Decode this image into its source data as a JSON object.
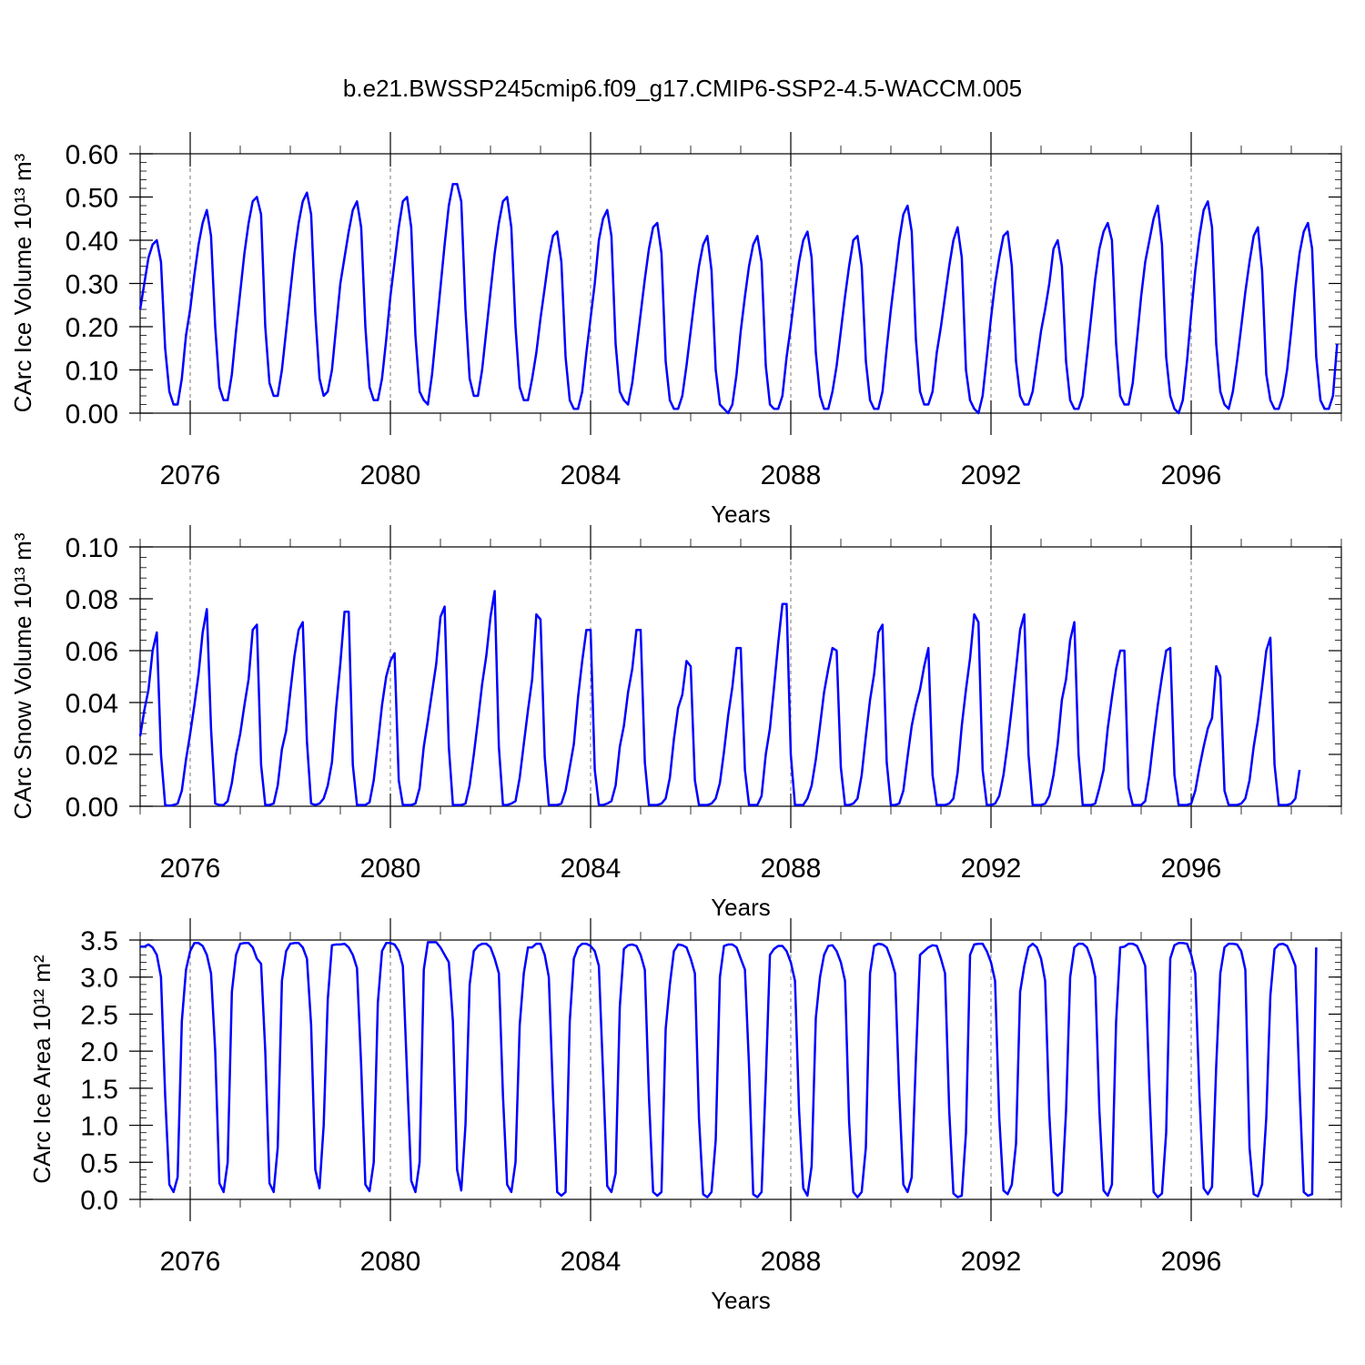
{
  "figure": {
    "title": "b.e21.BWSSP245cmip6.f09_g17.CMIP6-SSP2-4.5-WACCM.005"
  },
  "chart_data": [
    {
      "type": "line",
      "panel": "ice-volume",
      "ylabel": "CArc Ice Volume",
      "ylabel_unit": "10¹³ m³",
      "xlabel": "Years",
      "xlim": [
        2075,
        2099
      ],
      "ylim": [
        0,
        0.6
      ],
      "yticks": [
        0.0,
        0.1,
        0.2,
        0.3,
        0.4,
        0.5,
        0.6
      ],
      "ytick_labels": [
        "0.00",
        "0.10",
        "0.20",
        "0.30",
        "0.40",
        "0.50",
        "0.60"
      ],
      "yminor_step": 0.02,
      "xticks": [
        2076,
        2080,
        2084,
        2088,
        2092,
        2096
      ],
      "xtick_labels": [
        "2076",
        "2080",
        "2084",
        "2088",
        "2092",
        "2096"
      ],
      "grid": "vertical-dashed",
      "series": [
        {
          "color": "#0000ff",
          "x_start": 2075.0,
          "x_step": 0.08333,
          "values": [
            0.24,
            0.3,
            0.36,
            0.39,
            0.4,
            0.35,
            0.15,
            0.05,
            0.02,
            0.02,
            0.08,
            0.18,
            0.24,
            0.32,
            0.39,
            0.44,
            0.47,
            0.41,
            0.2,
            0.06,
            0.03,
            0.03,
            0.09,
            0.19,
            0.28,
            0.37,
            0.44,
            0.49,
            0.5,
            0.46,
            0.2,
            0.07,
            0.04,
            0.04,
            0.1,
            0.19,
            0.28,
            0.37,
            0.44,
            0.49,
            0.51,
            0.46,
            0.23,
            0.08,
            0.04,
            0.05,
            0.1,
            0.2,
            0.3,
            0.36,
            0.42,
            0.47,
            0.49,
            0.43,
            0.2,
            0.06,
            0.03,
            0.03,
            0.08,
            0.17,
            0.27,
            0.35,
            0.43,
            0.49,
            0.5,
            0.43,
            0.18,
            0.05,
            0.03,
            0.02,
            0.09,
            0.19,
            0.29,
            0.39,
            0.48,
            0.53,
            0.53,
            0.49,
            0.24,
            0.08,
            0.04,
            0.04,
            0.1,
            0.19,
            0.28,
            0.37,
            0.44,
            0.49,
            0.5,
            0.43,
            0.2,
            0.06,
            0.03,
            0.03,
            0.08,
            0.14,
            0.22,
            0.29,
            0.36,
            0.41,
            0.42,
            0.35,
            0.13,
            0.03,
            0.01,
            0.01,
            0.05,
            0.14,
            0.22,
            0.3,
            0.4,
            0.45,
            0.47,
            0.41,
            0.16,
            0.05,
            0.03,
            0.02,
            0.07,
            0.15,
            0.23,
            0.31,
            0.38,
            0.43,
            0.44,
            0.37,
            0.12,
            0.03,
            0.01,
            0.01,
            0.04,
            0.11,
            0.19,
            0.27,
            0.34,
            0.39,
            0.41,
            0.33,
            0.1,
            0.02,
            0.01,
            0.0,
            0.02,
            0.09,
            0.19,
            0.27,
            0.34,
            0.39,
            0.41,
            0.35,
            0.11,
            0.02,
            0.01,
            0.01,
            0.04,
            0.13,
            0.2,
            0.28,
            0.35,
            0.4,
            0.42,
            0.36,
            0.14,
            0.04,
            0.01,
            0.01,
            0.05,
            0.11,
            0.19,
            0.27,
            0.34,
            0.4,
            0.41,
            0.34,
            0.12,
            0.03,
            0.01,
            0.01,
            0.05,
            0.15,
            0.24,
            0.32,
            0.4,
            0.46,
            0.48,
            0.42,
            0.17,
            0.05,
            0.02,
            0.02,
            0.05,
            0.14,
            0.2,
            0.27,
            0.34,
            0.4,
            0.43,
            0.36,
            0.1,
            0.03,
            0.01,
            0.0,
            0.04,
            0.13,
            0.22,
            0.3,
            0.36,
            0.41,
            0.42,
            0.34,
            0.12,
            0.04,
            0.02,
            0.02,
            0.05,
            0.12,
            0.19,
            0.24,
            0.3,
            0.38,
            0.4,
            0.34,
            0.12,
            0.03,
            0.01,
            0.01,
            0.04,
            0.13,
            0.22,
            0.31,
            0.38,
            0.42,
            0.44,
            0.4,
            0.16,
            0.04,
            0.02,
            0.02,
            0.07,
            0.17,
            0.27,
            0.35,
            0.4,
            0.45,
            0.48,
            0.39,
            0.13,
            0.04,
            0.01,
            0.0,
            0.03,
            0.12,
            0.23,
            0.33,
            0.41,
            0.47,
            0.49,
            0.43,
            0.16,
            0.05,
            0.02,
            0.01,
            0.05,
            0.12,
            0.2,
            0.28,
            0.35,
            0.41,
            0.43,
            0.33,
            0.09,
            0.03,
            0.01,
            0.01,
            0.04,
            0.1,
            0.19,
            0.29,
            0.37,
            0.42,
            0.44,
            0.38,
            0.13,
            0.03,
            0.01,
            0.01,
            0.04,
            0.16
          ]
        }
      ]
    },
    {
      "type": "line",
      "panel": "snow-volume",
      "ylabel": "CArc Snow Volume",
      "ylabel_unit": "10¹³ m³",
      "xlabel": "Years",
      "xlim": [
        2075,
        2099
      ],
      "ylim": [
        0,
        0.1
      ],
      "yticks": [
        0.0,
        0.02,
        0.04,
        0.06,
        0.08,
        0.1
      ],
      "ytick_labels": [
        "0.00",
        "0.02",
        "0.04",
        "0.06",
        "0.08",
        "0.10"
      ],
      "yminor_step": 0.004,
      "xticks": [
        2076,
        2080,
        2084,
        2088,
        2092,
        2096
      ],
      "xtick_labels": [
        "2076",
        "2080",
        "2084",
        "2088",
        "2092",
        "2096"
      ],
      "grid": "vertical-dashed",
      "series": [
        {
          "color": "#0000ff",
          "x_start": 2075.0,
          "x_step": 0.08333,
          "values": [
            0.027,
            0.037,
            0.045,
            0.06,
            0.067,
            0.02,
            0.0005,
            0.0002,
            0.0005,
            0.001,
            0.006,
            0.018,
            0.028,
            0.039,
            0.051,
            0.067,
            0.076,
            0.03,
            0.001,
            0.0005,
            0.0005,
            0.002,
            0.009,
            0.02,
            0.028,
            0.039,
            0.049,
            0.068,
            0.07,
            0.016,
            0.0005,
            0.0005,
            0.001,
            0.008,
            0.022,
            0.029,
            0.044,
            0.058,
            0.068,
            0.071,
            0.025,
            0.001,
            0.0005,
            0.001,
            0.003,
            0.008,
            0.017,
            0.038,
            0.055,
            0.075,
            0.075,
            0.016,
            0.0005,
            0.0005,
            0.0005,
            0.0015,
            0.01,
            0.024,
            0.039,
            0.05,
            0.056,
            0.059,
            0.01,
            0.0005,
            0.0005,
            0.0005,
            0.001,
            0.007,
            0.023,
            0.033,
            0.044,
            0.055,
            0.073,
            0.077,
            0.023,
            0.0005,
            0.0005,
            0.0005,
            0.001,
            0.008,
            0.02,
            0.033,
            0.047,
            0.058,
            0.073,
            0.083,
            0.023,
            0.0005,
            0.0005,
            0.001,
            0.002,
            0.011,
            0.024,
            0.037,
            0.049,
            0.074,
            0.072,
            0.019,
            0.0005,
            0.0005,
            0.0005,
            0.001,
            0.006,
            0.015,
            0.024,
            0.042,
            0.056,
            0.068,
            0.068,
            0.014,
            0.0005,
            0.0005,
            0.001,
            0.002,
            0.008,
            0.023,
            0.031,
            0.044,
            0.053,
            0.068,
            0.068,
            0.017,
            0.0005,
            0.0005,
            0.0005,
            0.001,
            0.003,
            0.011,
            0.026,
            0.038,
            0.043,
            0.056,
            0.054,
            0.01,
            0.0005,
            0.0005,
            0.0005,
            0.001,
            0.003,
            0.009,
            0.021,
            0.035,
            0.046,
            0.061,
            0.061,
            0.014,
            0.0005,
            0.0005,
            0.0005,
            0.004,
            0.02,
            0.03,
            0.046,
            0.063,
            0.078,
            0.078,
            0.02,
            0.0005,
            0.0005,
            0.0005,
            0.003,
            0.008,
            0.018,
            0.031,
            0.044,
            0.053,
            0.061,
            0.06,
            0.015,
            0.0005,
            0.0005,
            0.001,
            0.003,
            0.012,
            0.027,
            0.041,
            0.051,
            0.067,
            0.07,
            0.017,
            0.0005,
            0.0005,
            0.001,
            0.006,
            0.019,
            0.031,
            0.039,
            0.045,
            0.054,
            0.061,
            0.012,
            0.0005,
            0.0005,
            0.0005,
            0.001,
            0.003,
            0.013,
            0.031,
            0.045,
            0.057,
            0.074,
            0.071,
            0.014,
            0.0005,
            0.0005,
            0.001,
            0.004,
            0.012,
            0.024,
            0.038,
            0.053,
            0.068,
            0.074,
            0.02,
            0.0005,
            0.0005,
            0.0005,
            0.001,
            0.004,
            0.012,
            0.024,
            0.041,
            0.049,
            0.064,
            0.071,
            0.02,
            0.0005,
            0.0005,
            0.0005,
            0.001,
            0.007,
            0.014,
            0.03,
            0.042,
            0.053,
            0.06,
            0.06,
            0.007,
            0.0005,
            0.0005,
            0.0005,
            0.002,
            0.012,
            0.026,
            0.039,
            0.05,
            0.06,
            0.061,
            0.012,
            0.0005,
            0.0005,
            0.0005,
            0.001,
            0.006,
            0.015,
            0.023,
            0.03,
            0.034,
            0.054,
            0.05,
            0.006,
            0.0005,
            0.0005,
            0.0005,
            0.001,
            0.003,
            0.01,
            0.023,
            0.033,
            0.046,
            0.06,
            0.065,
            0.016,
            0.0005,
            0.0005,
            0.0005,
            0.001,
            0.003,
            0.014
          ]
        }
      ]
    },
    {
      "type": "line",
      "panel": "ice-area",
      "ylabel": "CArc Ice Area",
      "ylabel_unit": "10¹² m²",
      "xlabel": "Years",
      "xlim": [
        2075,
        2099
      ],
      "ylim": [
        0,
        3.5
      ],
      "yticks": [
        0.0,
        0.5,
        1.0,
        1.5,
        2.0,
        2.5,
        3.0,
        3.5
      ],
      "ytick_labels": [
        "0.0",
        "0.5",
        "1.0",
        "1.5",
        "2.0",
        "2.5",
        "3.0",
        "3.5"
      ],
      "yminor_step": 0.1,
      "xticks": [
        2076,
        2080,
        2084,
        2088,
        2092,
        2096
      ],
      "xtick_labels": [
        "2076",
        "2080",
        "2084",
        "2088",
        "2092",
        "2096"
      ],
      "grid": "vertical-dashed",
      "series": [
        {
          "color": "#0000ff",
          "x_start": 2075.0,
          "x_step": 0.08333,
          "values": [
            3.41,
            3.41,
            3.44,
            3.4,
            3.3,
            3.0,
            1.4,
            0.2,
            0.1,
            0.3,
            2.4,
            3.1,
            3.35,
            3.46,
            3.46,
            3.42,
            3.3,
            3.05,
            2.0,
            0.22,
            0.1,
            0.5,
            2.8,
            3.3,
            3.45,
            3.46,
            3.46,
            3.4,
            3.25,
            3.18,
            2.0,
            0.22,
            0.1,
            0.7,
            2.95,
            3.35,
            3.45,
            3.46,
            3.46,
            3.4,
            3.25,
            2.35,
            0.4,
            0.15,
            1.0,
            2.7,
            3.43,
            3.44,
            3.44,
            3.45,
            3.4,
            3.3,
            3.12,
            1.8,
            0.2,
            0.11,
            0.5,
            2.65,
            3.35,
            3.46,
            3.46,
            3.44,
            3.35,
            3.15,
            1.7,
            0.25,
            0.1,
            0.5,
            3.1,
            3.47,
            3.47,
            3.47,
            3.4,
            3.3,
            3.2,
            2.4,
            0.4,
            0.12,
            1.0,
            2.9,
            3.35,
            3.42,
            3.45,
            3.45,
            3.4,
            3.25,
            3.05,
            1.4,
            0.2,
            0.1,
            0.5,
            2.35,
            3.05,
            3.4,
            3.4,
            3.45,
            3.45,
            3.3,
            3.0,
            1.4,
            0.1,
            0.05,
            0.1,
            2.4,
            3.25,
            3.4,
            3.45,
            3.45,
            3.42,
            3.35,
            3.15,
            1.7,
            0.18,
            0.1,
            0.35,
            2.6,
            3.38,
            3.43,
            3.44,
            3.42,
            3.3,
            3.1,
            1.4,
            0.1,
            0.05,
            0.1,
            2.3,
            2.9,
            3.35,
            3.44,
            3.43,
            3.4,
            3.25,
            3.05,
            1.1,
            0.07,
            0.03,
            0.1,
            0.8,
            3.0,
            3.42,
            3.44,
            3.44,
            3.4,
            3.25,
            3.1,
            1.8,
            0.07,
            0.03,
            0.1,
            1.6,
            3.3,
            3.38,
            3.42,
            3.42,
            3.35,
            3.2,
            2.95,
            1.2,
            0.15,
            0.05,
            0.45,
            2.45,
            3.0,
            3.3,
            3.42,
            3.43,
            3.35,
            3.2,
            2.95,
            1.05,
            0.1,
            0.03,
            0.1,
            0.7,
            3.05,
            3.42,
            3.45,
            3.44,
            3.4,
            3.25,
            3.05,
            1.45,
            0.2,
            0.1,
            0.3,
            1.9,
            3.3,
            3.35,
            3.4,
            3.43,
            3.42,
            3.25,
            3.05,
            1.2,
            0.08,
            0.03,
            0.05,
            0.9,
            3.3,
            3.44,
            3.45,
            3.45,
            3.35,
            3.2,
            2.95,
            1.1,
            0.12,
            0.07,
            0.2,
            0.75,
            2.8,
            3.15,
            3.4,
            3.45,
            3.4,
            3.25,
            2.95,
            1.15,
            0.1,
            0.05,
            0.1,
            1.2,
            3.0,
            3.4,
            3.45,
            3.45,
            3.4,
            3.25,
            3.0,
            1.2,
            0.12,
            0.05,
            0.2,
            2.4,
            3.4,
            3.41,
            3.45,
            3.45,
            3.42,
            3.3,
            3.15,
            1.5,
            0.1,
            0.03,
            0.08,
            0.9,
            3.25,
            3.43,
            3.46,
            3.46,
            3.45,
            3.3,
            3.05,
            1.4,
            0.15,
            0.07,
            0.17,
            1.8,
            3.05,
            3.4,
            3.45,
            3.45,
            3.44,
            3.35,
            3.1,
            0.7,
            0.07,
            0.04,
            0.2,
            1.1,
            2.75,
            3.38,
            3.44,
            3.45,
            3.42,
            3.3,
            3.15,
            1.5,
            0.1,
            0.05,
            0.07,
            3.4
          ]
        }
      ]
    }
  ]
}
